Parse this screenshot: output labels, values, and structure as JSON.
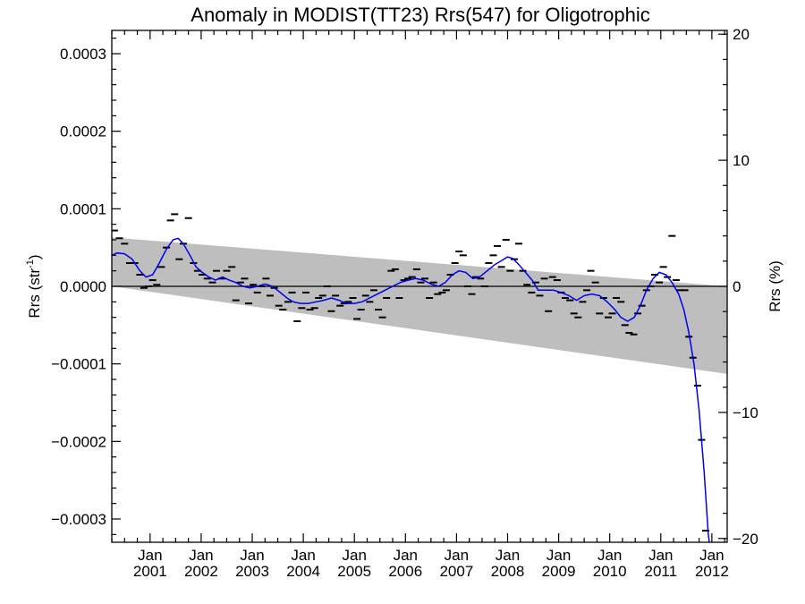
{
  "chart_data": {
    "type": "line",
    "title": "Anomaly in MODIST(TT23) Rrs(547) for Oligotrophic",
    "ylabel_left": "Rrs (str",
    "ylabel_left_sup": "-1",
    "ylabel_left_suffix": ")",
    "ylabel_right": "Rrs (%)",
    "x_range": [
      2000.25,
      2012.3
    ],
    "ylim_left": [
      -0.00033,
      0.00033
    ],
    "ylim_right": [
      -20.3,
      20.3
    ],
    "left_ticks": [
      {
        "value": 0.0003,
        "label": "0.0003"
      },
      {
        "value": 0.0002,
        "label": "0.0002"
      },
      {
        "value": 0.0001,
        "label": "0.0001"
      },
      {
        "value": 0.0,
        "label": "0.0000"
      },
      {
        "value": -0.0001,
        "label": "−0.0001"
      },
      {
        "value": -0.0002,
        "label": "−0.0002"
      },
      {
        "value": -0.0003,
        "label": "−0.0003"
      }
    ],
    "right_ticks": [
      {
        "value": 20,
        "label": "20"
      },
      {
        "value": 10,
        "label": "10"
      },
      {
        "value": 0,
        "label": "0"
      },
      {
        "value": -10,
        "label": "−10"
      },
      {
        "value": -20,
        "label": "−20"
      }
    ],
    "x_ticks": [
      {
        "value": 2001,
        "month": "Jan",
        "year": "2001"
      },
      {
        "value": 2002,
        "month": "Jan",
        "year": "2002"
      },
      {
        "value": 2003,
        "month": "Jan",
        "year": "2003"
      },
      {
        "value": 2004,
        "month": "Jan",
        "year": "2004"
      },
      {
        "value": 2005,
        "month": "Jan",
        "year": "2005"
      },
      {
        "value": 2006,
        "month": "Jan",
        "year": "2006"
      },
      {
        "value": 2007,
        "month": "Jan",
        "year": "2007"
      },
      {
        "value": 2008,
        "month": "Jan",
        "year": "2008"
      },
      {
        "value": 2009,
        "month": "Jan",
        "year": "2009"
      },
      {
        "value": 2010,
        "month": "Jan",
        "year": "2010"
      },
      {
        "value": 2011,
        "month": "Jan",
        "year": "2011"
      },
      {
        "value": 2012,
        "month": "Jan",
        "year": "2012"
      }
    ],
    "band": {
      "color": "#bebebe",
      "upper": [
        [
          2000.25,
          6.3e-05
        ],
        [
          2012.3,
          0.0
        ]
      ],
      "lower": [
        [
          2000.25,
          0.0
        ],
        [
          2012.3,
          -0.000113
        ]
      ]
    },
    "zero_line": 0,
    "series": [
      {
        "marker": "dash",
        "color": "#000000",
        "points": [
          [
            2000.3,
            7.2e-05
          ],
          [
            2000.4,
            6.2e-05
          ],
          [
            2000.5,
            5.5e-05
          ],
          [
            2000.6,
            3e-05
          ],
          [
            2000.7,
            3e-05
          ],
          [
            2000.8,
            1.5e-05
          ],
          [
            2000.88,
            -2e-06
          ],
          [
            2000.97,
            0.0
          ],
          [
            2001.05,
            8e-06
          ],
          [
            2001.13,
            2e-06
          ],
          [
            2001.22,
            2.5e-05
          ],
          [
            2001.32,
            5e-05
          ],
          [
            2001.4,
            8.5e-05
          ],
          [
            2001.48,
            9.3e-05
          ],
          [
            2001.57,
            3.5e-05
          ],
          [
            2001.65,
            5.5e-05
          ],
          [
            2001.75,
            8.8e-05
          ],
          [
            2001.85,
            3e-05
          ],
          [
            2001.93,
            2e-05
          ],
          [
            2002.02,
            1.5e-05
          ],
          [
            2002.12,
            1e-05
          ],
          [
            2002.22,
            5e-06
          ],
          [
            2002.3,
            2e-05
          ],
          [
            2002.4,
            1e-05
          ],
          [
            2002.5,
            2e-05
          ],
          [
            2002.6,
            2.5e-05
          ],
          [
            2002.68,
            -1.8e-05
          ],
          [
            2002.77,
            5e-06
          ],
          [
            2002.85,
            1e-05
          ],
          [
            2002.93,
            -2.2e-05
          ],
          [
            2003.02,
            2e-06
          ],
          [
            2003.1,
            -8e-06
          ],
          [
            2003.18,
            0.0
          ],
          [
            2003.27,
            1e-05
          ],
          [
            2003.35,
            -1.2e-05
          ],
          [
            2003.43,
            -2e-06
          ],
          [
            2003.52,
            -2.5e-05
          ],
          [
            2003.6,
            -3e-05
          ],
          [
            2003.7,
            -2e-05
          ],
          [
            2003.78,
            -8e-06
          ],
          [
            2003.88,
            -4.5e-05
          ],
          [
            2003.97,
            -2.8e-05
          ],
          [
            2004.05,
            -8e-06
          ],
          [
            2004.13,
            -3e-05
          ],
          [
            2004.22,
            -2.8e-05
          ],
          [
            2004.3,
            -1.5e-05
          ],
          [
            2004.38,
            -1.2e-05
          ],
          [
            2004.47,
            0.0
          ],
          [
            2004.55,
            -3.2e-05
          ],
          [
            2004.63,
            -1.2e-05
          ],
          [
            2004.72,
            -2.5e-05
          ],
          [
            2004.8,
            -2.2e-05
          ],
          [
            2004.88,
            -2e-05
          ],
          [
            2004.97,
            -1.5e-05
          ],
          [
            2005.05,
            -4.2e-05
          ],
          [
            2005.13,
            -3e-05
          ],
          [
            2005.22,
            -1.2e-05
          ],
          [
            2005.3,
            -2e-05
          ],
          [
            2005.38,
            -5e-06
          ],
          [
            2005.47,
            -3e-05
          ],
          [
            2005.55,
            -4e-05
          ],
          [
            2005.63,
            -1.5e-05
          ],
          [
            2005.72,
            2e-05
          ],
          [
            2005.8,
            2.2e-05
          ],
          [
            2005.88,
            -1.5e-05
          ],
          [
            2005.97,
            8e-06
          ],
          [
            2006.05,
            1e-05
          ],
          [
            2006.13,
            1.2e-05
          ],
          [
            2006.22,
            2.2e-05
          ],
          [
            2006.3,
            5e-06
          ],
          [
            2006.38,
            1e-05
          ],
          [
            2006.47,
            -1.5e-05
          ],
          [
            2006.55,
            5e-06
          ],
          [
            2006.63,
            -1e-05
          ],
          [
            2006.72,
            -8e-06
          ],
          [
            2006.8,
            -5e-06
          ],
          [
            2006.88,
            1.5e-05
          ],
          [
            2006.97,
            3e-05
          ],
          [
            2007.05,
            4.5e-05
          ],
          [
            2007.13,
            4e-05
          ],
          [
            2007.22,
            0.0
          ],
          [
            2007.3,
            -1e-05
          ],
          [
            2007.38,
            1.2e-05
          ],
          [
            2007.47,
            1e-05
          ],
          [
            2007.55,
            0.0
          ],
          [
            2007.63,
            3e-05
          ],
          [
            2007.72,
            4e-05
          ],
          [
            2007.8,
            5.2e-05
          ],
          [
            2007.88,
            2.5e-05
          ],
          [
            2007.97,
            6e-05
          ],
          [
            2008.05,
            2e-05
          ],
          [
            2008.13,
            3.5e-05
          ],
          [
            2008.22,
            5.5e-05
          ],
          [
            2008.3,
            2e-05
          ],
          [
            2008.38,
            2e-06
          ],
          [
            2008.47,
            -8e-06
          ],
          [
            2008.55,
            5e-06
          ],
          [
            2008.63,
            -1.2e-05
          ],
          [
            2008.72,
            1e-05
          ],
          [
            2008.8,
            -3.2e-05
          ],
          [
            2008.88,
            1.2e-05
          ],
          [
            2008.97,
            8e-06
          ],
          [
            2009.05,
            -8e-06
          ],
          [
            2009.13,
            -1.5e-05
          ],
          [
            2009.22,
            -1.8e-05
          ],
          [
            2009.3,
            -3.5e-05
          ],
          [
            2009.38,
            -4e-05
          ],
          [
            2009.47,
            -2e-05
          ],
          [
            2009.55,
            -5e-06
          ],
          [
            2009.63,
            2e-05
          ],
          [
            2009.72,
            5e-06
          ],
          [
            2009.8,
            -3.5e-05
          ],
          [
            2009.88,
            -1.5e-05
          ],
          [
            2009.97,
            -4e-05
          ],
          [
            2010.05,
            -3.5e-05
          ],
          [
            2010.13,
            -1.5e-05
          ],
          [
            2010.22,
            -2e-05
          ],
          [
            2010.3,
            -5e-05
          ],
          [
            2010.38,
            -6e-05
          ],
          [
            2010.47,
            -6.2e-05
          ],
          [
            2010.55,
            -3.5e-05
          ],
          [
            2010.63,
            -2.5e-05
          ],
          [
            2010.72,
            -5e-06
          ],
          [
            2010.8,
            0.0
          ],
          [
            2010.88,
            1.5e-05
          ],
          [
            2010.97,
            5e-06
          ],
          [
            2011.05,
            2.5e-05
          ],
          [
            2011.13,
            1.2e-05
          ],
          [
            2011.22,
            6.5e-05
          ],
          [
            2011.3,
            8e-06
          ],
          [
            2011.38,
            -5e-06
          ],
          [
            2011.47,
            -5e-06
          ],
          [
            2011.55,
            -6.5e-05
          ],
          [
            2011.63,
            -9.2e-05
          ],
          [
            2011.72,
            -0.000128
          ],
          [
            2011.8,
            -0.000198
          ],
          [
            2011.88,
            -0.000315
          ]
        ]
      },
      {
        "marker": "line",
        "color": "#0000ee",
        "points": [
          [
            2000.25,
            4e-05
          ],
          [
            2000.35,
            4.3e-05
          ],
          [
            2000.5,
            4.2e-05
          ],
          [
            2000.65,
            3.5e-05
          ],
          [
            2000.8,
            2e-05
          ],
          [
            2000.92,
            1.2e-05
          ],
          [
            2001.05,
            1.5e-05
          ],
          [
            2001.18,
            3e-05
          ],
          [
            2001.32,
            4.8e-05
          ],
          [
            2001.45,
            6e-05
          ],
          [
            2001.55,
            6.2e-05
          ],
          [
            2001.65,
            5.5e-05
          ],
          [
            2001.78,
            4e-05
          ],
          [
            2001.9,
            2.5e-05
          ],
          [
            2002.02,
            1.8e-05
          ],
          [
            2002.15,
            1.2e-05
          ],
          [
            2002.28,
            8e-06
          ],
          [
            2002.42,
            1.2e-05
          ],
          [
            2002.55,
            8e-06
          ],
          [
            2002.68,
            5e-06
          ],
          [
            2002.82,
            0.0
          ],
          [
            2002.95,
            -2e-06
          ],
          [
            2003.1,
            0.0
          ],
          [
            2003.25,
            3e-06
          ],
          [
            2003.4,
            0.0
          ],
          [
            2003.55,
            -8e-06
          ],
          [
            2003.68,
            -1.5e-05
          ],
          [
            2003.8,
            -2e-05
          ],
          [
            2003.95,
            -2.2e-05
          ],
          [
            2004.1,
            -2.2e-05
          ],
          [
            2004.25,
            -2e-05
          ],
          [
            2004.4,
            -1.8e-05
          ],
          [
            2004.55,
            -1.5e-05
          ],
          [
            2004.7,
            -1.8e-05
          ],
          [
            2004.85,
            -2.2e-05
          ],
          [
            2005.0,
            -2.2e-05
          ],
          [
            2005.15,
            -2e-05
          ],
          [
            2005.3,
            -1.5e-05
          ],
          [
            2005.45,
            -1e-05
          ],
          [
            2005.6,
            -5e-06
          ],
          [
            2005.75,
            0.0
          ],
          [
            2005.9,
            5e-06
          ],
          [
            2006.05,
            8e-06
          ],
          [
            2006.2,
            1e-05
          ],
          [
            2006.35,
            8e-06
          ],
          [
            2006.5,
            3e-06
          ],
          [
            2006.65,
            0.0
          ],
          [
            2006.78,
            5e-06
          ],
          [
            2006.92,
            1.5e-05
          ],
          [
            2007.05,
            2e-05
          ],
          [
            2007.18,
            1.8e-05
          ],
          [
            2007.32,
            1e-05
          ],
          [
            2007.45,
            1.2e-05
          ],
          [
            2007.6,
            2e-05
          ],
          [
            2007.75,
            2.8e-05
          ],
          [
            2007.88,
            3.3e-05
          ],
          [
            2008.0,
            3.8e-05
          ],
          [
            2008.1,
            3.6e-05
          ],
          [
            2008.22,
            2.8e-05
          ],
          [
            2008.35,
            1.8e-05
          ],
          [
            2008.48,
            8e-06
          ],
          [
            2008.6,
            -5e-06
          ],
          [
            2008.75,
            -5e-06
          ],
          [
            2008.9,
            -5e-06
          ],
          [
            2009.05,
            -8e-06
          ],
          [
            2009.2,
            -1.2e-05
          ],
          [
            2009.35,
            -1.8e-05
          ],
          [
            2009.5,
            -1.2e-05
          ],
          [
            2009.65,
            -1e-05
          ],
          [
            2009.8,
            -1.2e-05
          ],
          [
            2009.95,
            -2e-05
          ],
          [
            2010.1,
            -3e-05
          ],
          [
            2010.22,
            -4e-05
          ],
          [
            2010.35,
            -4.5e-05
          ],
          [
            2010.48,
            -4e-05
          ],
          [
            2010.6,
            -2.5e-05
          ],
          [
            2010.72,
            -5e-06
          ],
          [
            2010.85,
            1e-05
          ],
          [
            2010.97,
            1.8e-05
          ],
          [
            2011.1,
            1.5e-05
          ],
          [
            2011.22,
            5e-06
          ],
          [
            2011.35,
            -1e-05
          ],
          [
            2011.45,
            -3e-05
          ],
          [
            2011.55,
            -6e-05
          ],
          [
            2011.65,
            -0.0001
          ],
          [
            2011.75,
            -0.00016
          ],
          [
            2011.85,
            -0.00024
          ],
          [
            2011.93,
            -0.00032
          ],
          [
            2011.96,
            -0.000335
          ]
        ]
      }
    ]
  }
}
